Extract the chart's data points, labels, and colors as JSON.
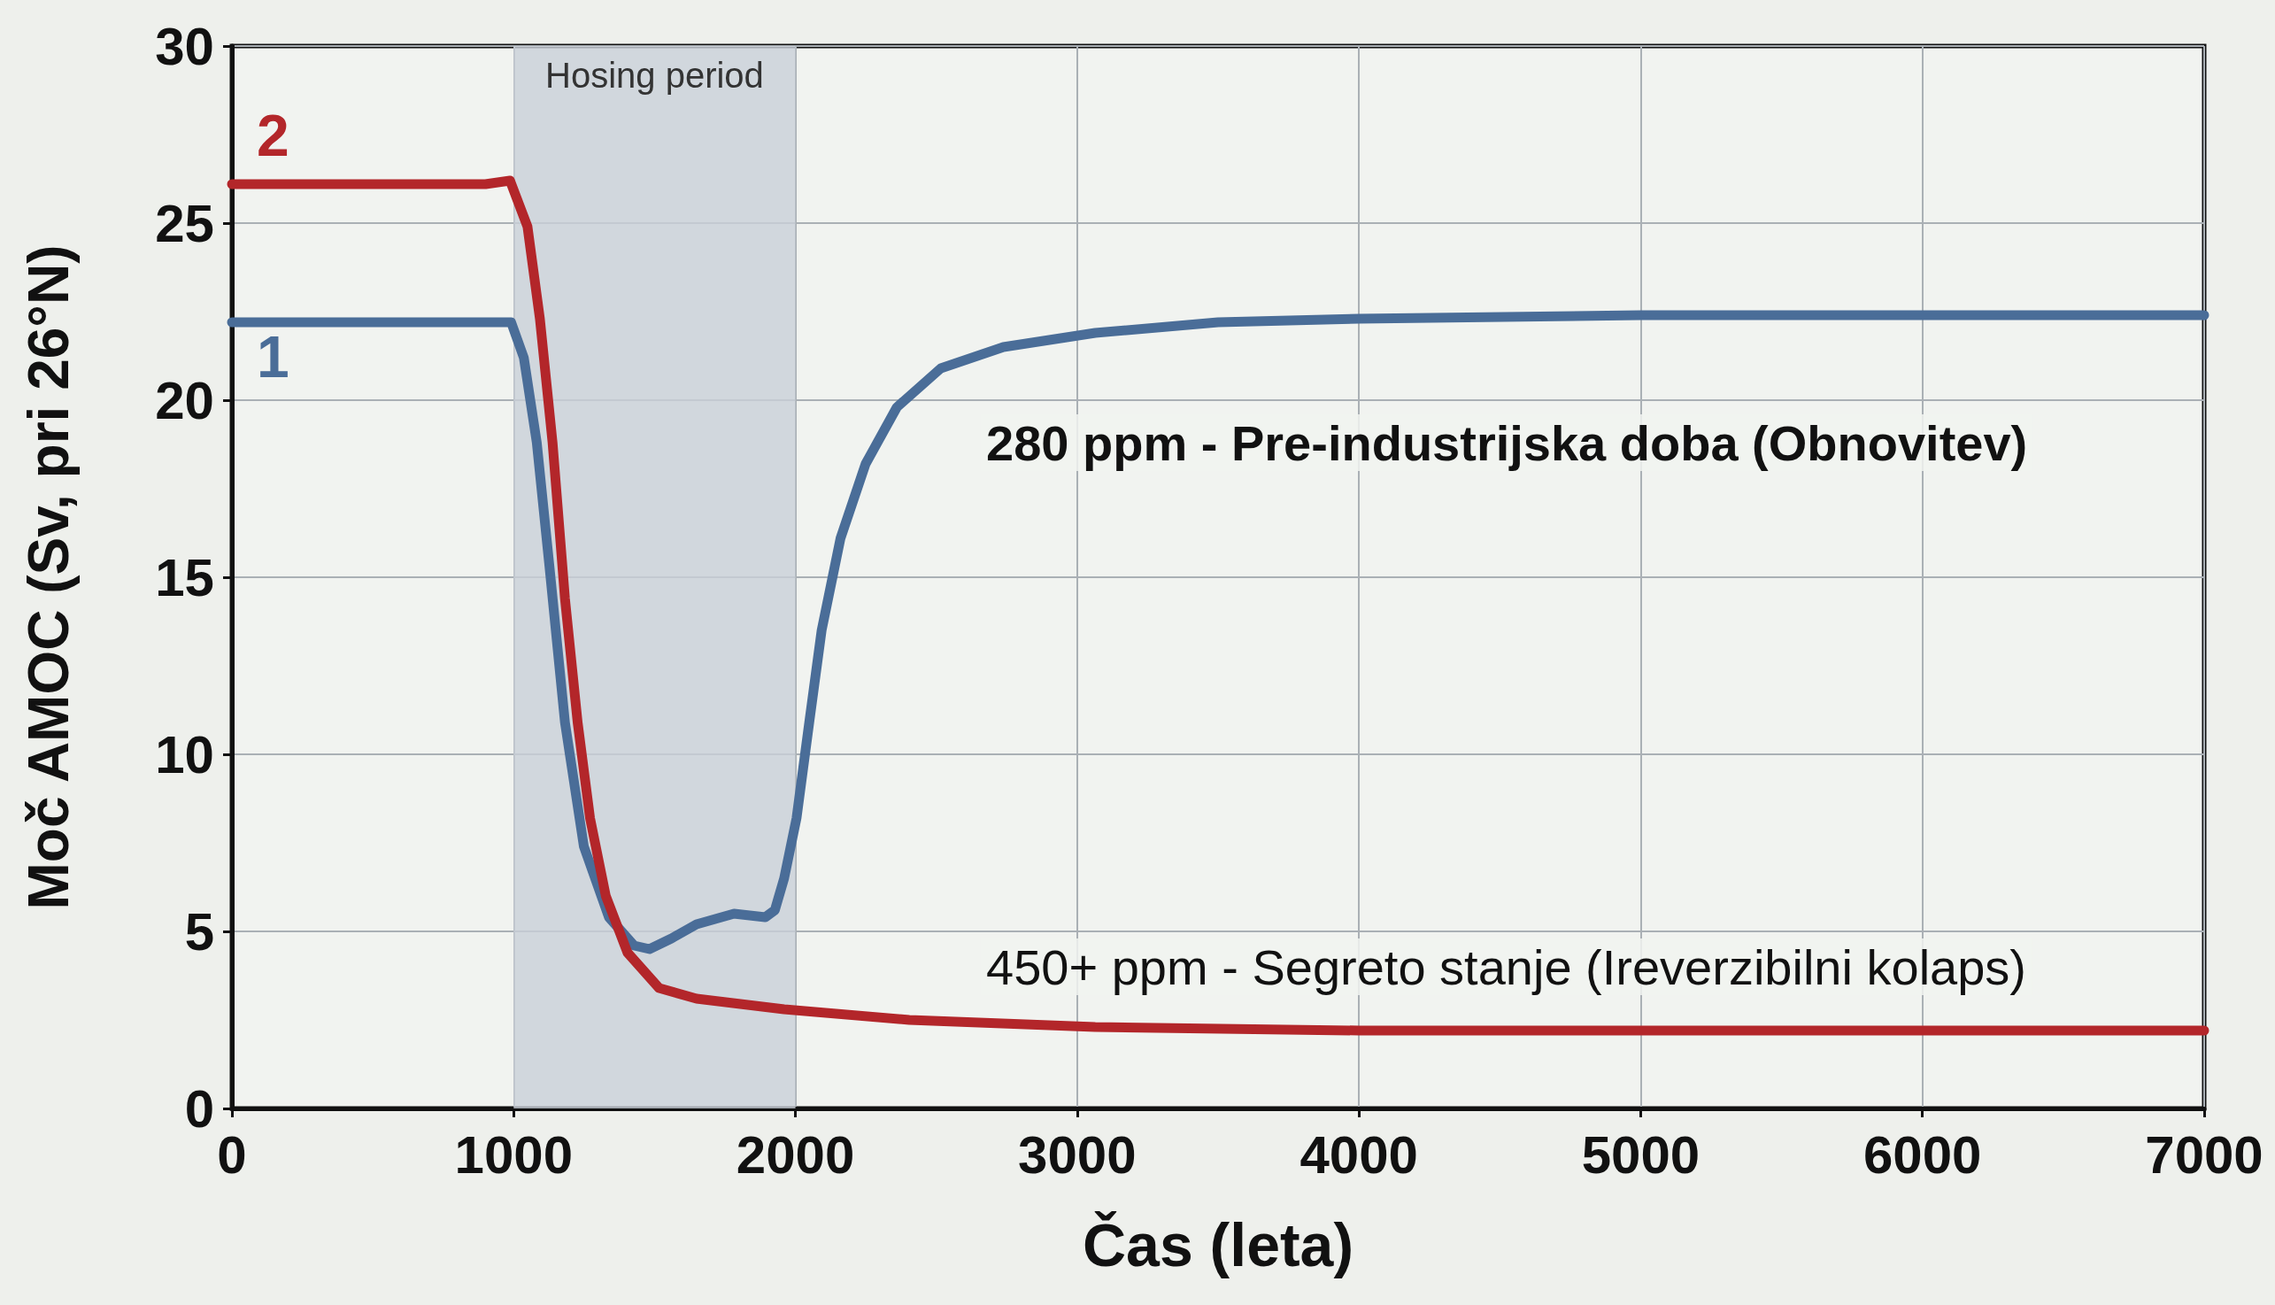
{
  "chart_data": {
    "type": "line",
    "xlabel": "Čas (leta)",
    "ylabel": "Moč AMOC (Sv, pri 26°N)",
    "xlim": [
      0,
      7000
    ],
    "xticks": [
      0,
      1000,
      2000,
      3000,
      4000,
      5000,
      6000,
      7000
    ],
    "ylim": [
      0,
      30
    ],
    "yticks": [
      0,
      5,
      10,
      15,
      20,
      25,
      30
    ],
    "grid": true,
    "legend": false,
    "line_style": "solid",
    "series": [
      {
        "name": "1",
        "color": "#4a6d98",
        "x": [
          0,
          300,
          600,
          900,
          991,
          1036,
          1082,
          1127,
          1182,
          1249,
          1338,
          1427,
          1482,
          1560,
          1649,
          1782,
          1893,
          1927,
          1960,
          2004,
          2049,
          2093,
          2160,
          2249,
          2360,
          2516,
          2738,
          3064,
          3500,
          4000,
          5000,
          6000,
          7000
        ],
        "values": [
          22.2,
          22.2,
          22.2,
          22.2,
          22.2,
          21.2,
          18.8,
          15.3,
          10.9,
          7.4,
          5.4,
          4.6,
          4.5,
          4.8,
          5.2,
          5.5,
          5.4,
          5.6,
          6.5,
          8.2,
          10.9,
          13.5,
          16.1,
          18.2,
          19.8,
          20.9,
          21.5,
          21.9,
          22.2,
          22.3,
          22.4,
          22.4,
          22.4
        ]
      },
      {
        "name": "2",
        "color": "#b3262a",
        "x": [
          0,
          300,
          600,
          900,
          987,
          1049,
          1093,
          1138,
          1182,
          1227,
          1271,
          1327,
          1404,
          1516,
          1649,
          1960,
          2404,
          3064,
          4000,
          5000,
          6000,
          7000
        ],
        "values": [
          26.1,
          26.1,
          26.1,
          26.1,
          26.2,
          24.9,
          22.3,
          18.8,
          14.4,
          10.9,
          8.2,
          6.0,
          4.4,
          3.4,
          3.1,
          2.8,
          2.5,
          2.3,
          2.2,
          2.2,
          2.2,
          2.2
        ]
      }
    ],
    "bands": [
      {
        "axis": "x",
        "from": 1000,
        "to": 2000,
        "label": "Hosing period",
        "color": "#c9d0d8"
      }
    ],
    "annotations": [
      "280 ppm - Pre-industrijska doba (Obnovitev)",
      "450+ ppm - Segreto stanje (Ireverzibilni kolaps)"
    ]
  }
}
